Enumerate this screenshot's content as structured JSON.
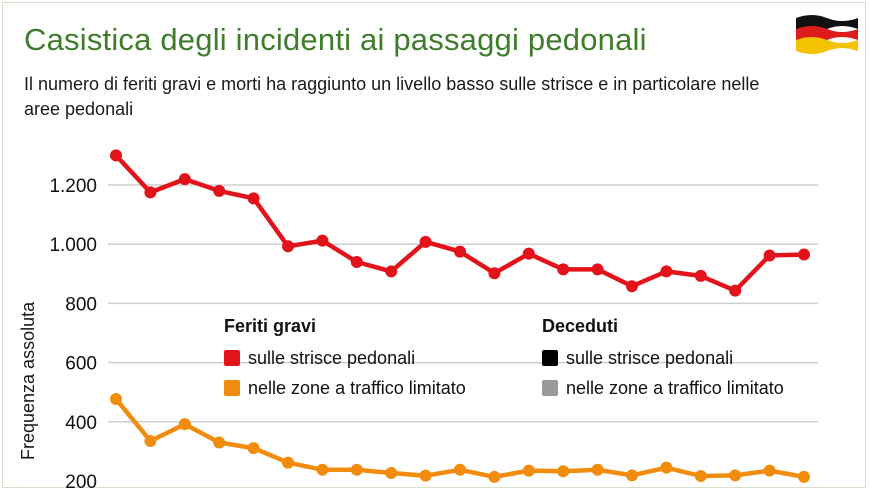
{
  "title": "Casistica degli incidenti ai passaggi pedonali",
  "subtitle": "Il numero di feriti gravi e morti ha raggiunto un livello basso sulle strisce e in particolare nelle aree pedonali",
  "colors": {
    "title_green": "#3f7d2c",
    "red": "#e3131b",
    "orange": "#f28c0f",
    "black": "#000000",
    "gray": "#9a9a9a",
    "grid": "#cfcfcf"
  },
  "flag": {
    "icon": "germany-flag-icon"
  },
  "legend": {
    "feriti_title": "Feriti gravi",
    "deceduti_title": "Deceduti",
    "feriti_items": [
      "sulle strisce pedonali",
      "nelle zone a traffico limitato"
    ],
    "deceduti_items": [
      "sulle strisce pedonali",
      "nelle zone a traffico limitato"
    ]
  },
  "chart_data": {
    "type": "line",
    "ylabel": "Frequenza assoluta",
    "xlabel": "",
    "ylim": [
      180,
      1350
    ],
    "yticks": [
      200,
      400,
      600,
      800,
      1000,
      1200
    ],
    "ytick_labels": [
      "200",
      "400",
      "600",
      "800",
      "1.000",
      "1.200"
    ],
    "grid": true,
    "legend_placement": "center",
    "series": [
      {
        "name": "Feriti gravi – sulle strisce pedonali",
        "color": "#e3131b",
        "values": [
          1300,
          1175,
          1220,
          1180,
          1155,
          993,
          1012,
          940,
          908,
          1008,
          975,
          902,
          968,
          915,
          915,
          858,
          908,
          893,
          843,
          962,
          965
        ]
      },
      {
        "name": "Feriti gravi – nelle zone a traffico limitato",
        "color": "#f28c0f",
        "values": [
          477,
          335,
          392,
          330,
          311,
          262,
          238,
          238,
          227,
          218,
          238,
          214,
          235,
          233,
          238,
          219,
          245,
          217,
          219,
          235,
          214
        ]
      }
    ]
  }
}
